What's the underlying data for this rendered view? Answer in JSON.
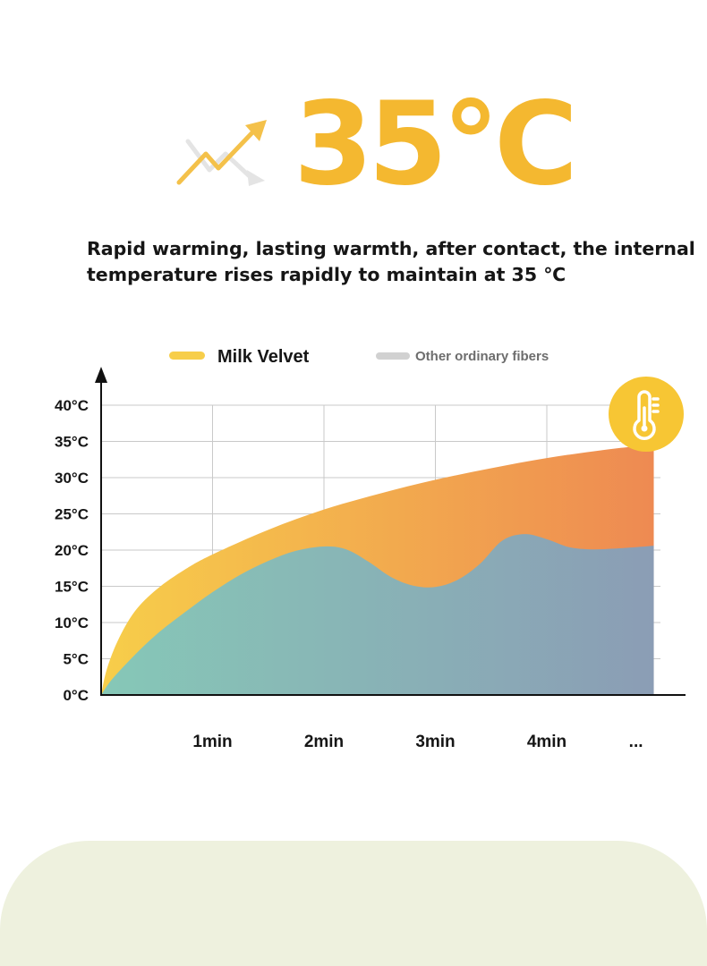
{
  "hero": {
    "temperature_text": "35°C",
    "icon": "trend-up-icon",
    "accent_color": "#F4B830",
    "icon_color_primary": "#F4C14A",
    "icon_color_secondary": "#E4E4E4"
  },
  "headline": "Rapid warming, lasting warmth, after contact, the internal temperature rises rapidly to maintain at 35 ℃",
  "legend": {
    "series_a": "Milk Velvet",
    "series_b": "Other ordinary fibers"
  },
  "colors": {
    "milk_velvet_start": "#F7CE4A",
    "milk_velvet_end": "#EE8A52",
    "other_fibers_start": "#86C8B7",
    "other_fibers_end": "#8B9DB5",
    "legend_gray": "#D1D1D1",
    "badge": "#F7C634",
    "bottom_panel": "#EEF1DE",
    "text": "#161616"
  },
  "badge_icon": "thermometer-icon",
  "chart_data": {
    "type": "area",
    "ylim": [
      0,
      40
    ],
    "xlim": [
      0,
      5
    ],
    "y_ticks": [
      {
        "value": 0,
        "label": "0°C"
      },
      {
        "value": 5,
        "label": "5°C"
      },
      {
        "value": 10,
        "label": "10°C"
      },
      {
        "value": 15,
        "label": "15°C"
      },
      {
        "value": 20,
        "label": "20°C"
      },
      {
        "value": 25,
        "label": "25°C"
      },
      {
        "value": 30,
        "label": "30°C"
      },
      {
        "value": 35,
        "label": "35°C"
      },
      {
        "value": 40,
        "label": "40°C"
      }
    ],
    "x_ticks": [
      {
        "value": 1,
        "label": "1min"
      },
      {
        "value": 2,
        "label": "2min"
      },
      {
        "value": 3,
        "label": "3min"
      },
      {
        "value": 4,
        "label": "4min"
      },
      {
        "value": 4.8,
        "label": "..."
      }
    ],
    "grid": true,
    "legend_position": "top",
    "series": [
      {
        "name": "Milk Velvet",
        "x": [
          0,
          0.05,
          0.15,
          0.3,
          0.5,
          0.75,
          1,
          1.5,
          2,
          2.5,
          3,
          3.5,
          4,
          4.5,
          4.96
        ],
        "y": [
          0,
          3.5,
          7.5,
          11.5,
          14.6,
          17.3,
          19.4,
          22.8,
          25.6,
          27.8,
          29.7,
          31.3,
          32.7,
          33.8,
          34.6
        ]
      },
      {
        "name": "Other ordinary fibers",
        "x": [
          0,
          0.1,
          0.3,
          0.5,
          0.75,
          1,
          1.25,
          1.5,
          1.75,
          2,
          2.2,
          2.4,
          2.6,
          2.8,
          3,
          3.2,
          3.4,
          3.6,
          3.8,
          4,
          4.2,
          4.4,
          4.6,
          4.8,
          4.96
        ],
        "y": [
          0,
          2.2,
          5.5,
          8.4,
          11.4,
          14.2,
          16.6,
          18.5,
          19.9,
          20.5,
          20.1,
          18.4,
          16.3,
          15.1,
          14.9,
          15.9,
          18.1,
          21.3,
          22.2,
          21.5,
          20.4,
          20.1,
          20.2,
          20.4,
          20.6
        ]
      }
    ]
  }
}
